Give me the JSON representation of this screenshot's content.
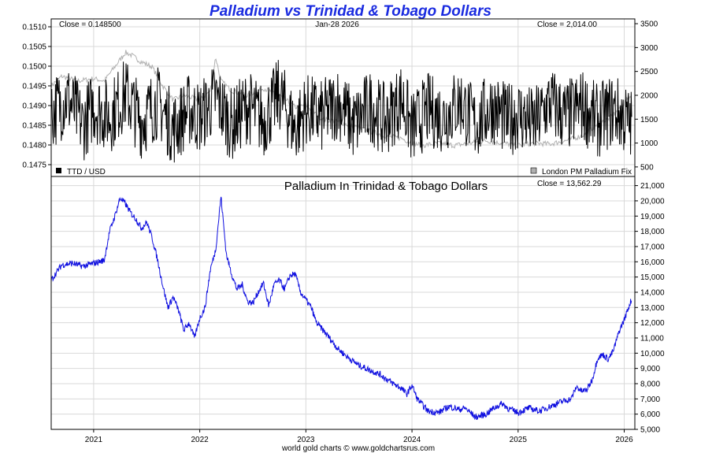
{
  "title": "Palladium vs Trinidad & Tobago Dollars",
  "footer": "world gold charts © www.goldchartsrus.com",
  "colors": {
    "title": "#1a2be0",
    "ttd_line": "#000000",
    "palladium_line": "#b0b0b0",
    "blue_line": "#1010e0",
    "grid": "#d9d9d9"
  },
  "x_axis": {
    "start": 2020.6,
    "end": 2026.1,
    "ticks": [
      {
        "value": 2021,
        "label": "2021"
      },
      {
        "value": 2022,
        "label": "2022"
      },
      {
        "value": 2023,
        "label": "2023"
      },
      {
        "value": 2024,
        "label": "2024"
      },
      {
        "value": 2025,
        "label": "2025"
      },
      {
        "value": 2026,
        "label": "2026"
      }
    ]
  },
  "top_panel": {
    "close_left": "Close = 0.148500",
    "date": "Jan-28  2026",
    "close_right": "Close = 2,014.00",
    "legend_left": "TTD / USD",
    "legend_right": "London PM Palladium Fix",
    "left_axis": {
      "range": [
        0.1472,
        0.1512
      ],
      "ticks": [
        {
          "value": 0.1475,
          "label": "0.1475"
        },
        {
          "value": 0.148,
          "label": "0.1480"
        },
        {
          "value": 0.1485,
          "label": "0.1485"
        },
        {
          "value": 0.149,
          "label": "0.1490"
        },
        {
          "value": 0.1495,
          "label": "0.1495"
        },
        {
          "value": 0.15,
          "label": "0.1500"
        },
        {
          "value": 0.1505,
          "label": "0.1505"
        },
        {
          "value": 0.151,
          "label": "0.1510"
        }
      ]
    },
    "right_axis": {
      "range": [
        300,
        3600
      ],
      "ticks": [
        {
          "value": 500,
          "label": "500"
        },
        {
          "value": 1000,
          "label": "1000"
        },
        {
          "value": 1500,
          "label": "1500"
        },
        {
          "value": 2000,
          "label": "2000"
        },
        {
          "value": 2500,
          "label": "2500"
        },
        {
          "value": 3000,
          "label": "3000"
        },
        {
          "value": 3500,
          "label": "3500"
        }
      ]
    }
  },
  "bottom_panel": {
    "title": "Palladium In Trinidad & Tobago Dollars",
    "close": "Close = 13,562.29",
    "right_axis": {
      "range": [
        5000,
        21600
      ],
      "ticks": [
        {
          "value": 5000,
          "label": "5,000"
        },
        {
          "value": 6000,
          "label": "6,000"
        },
        {
          "value": 7000,
          "label": "7,000"
        },
        {
          "value": 8000,
          "label": "8,000"
        },
        {
          "value": 9000,
          "label": "9,000"
        },
        {
          "value": 10000,
          "label": "10,000"
        },
        {
          "value": 11000,
          "label": "11,000"
        },
        {
          "value": 12000,
          "label": "12,000"
        },
        {
          "value": 13000,
          "label": "13,000"
        },
        {
          "value": 14000,
          "label": "14,000"
        },
        {
          "value": 15000,
          "label": "15,000"
        },
        {
          "value": 16000,
          "label": "16,000"
        },
        {
          "value": 17000,
          "label": "17,000"
        },
        {
          "value": 18000,
          "label": "18,000"
        },
        {
          "value": 19000,
          "label": "19,000"
        },
        {
          "value": 20000,
          "label": "20,000"
        },
        {
          "value": 21000,
          "label": "21,000"
        }
      ]
    }
  },
  "chart_data": [
    {
      "type": "line",
      "title": "Palladium vs Trinidad & Tobago Dollars",
      "series": [
        {
          "name": "TTD / USD",
          "axis": "left",
          "x": [
            2020.6,
            2020.75,
            2020.9,
            2021.0,
            2021.15,
            2021.3,
            2021.45,
            2021.6,
            2021.75,
            2021.9,
            2022.0,
            2022.15,
            2022.3,
            2022.45,
            2022.6,
            2022.75,
            2022.9,
            2023.0,
            2023.15,
            2023.3,
            2023.45,
            2023.6,
            2023.75,
            2023.9,
            2024.0,
            2024.15,
            2024.3,
            2024.45,
            2024.6,
            2024.75,
            2024.9,
            2025.0,
            2025.15,
            2025.3,
            2025.45,
            2025.6,
            2025.75,
            2025.9,
            2026.07
          ],
          "values": [
            0.1488,
            0.1492,
            0.1485,
            0.149,
            0.1487,
            0.1493,
            0.1486,
            0.1491,
            0.1484,
            0.1489,
            0.1487,
            0.1492,
            0.1485,
            0.149,
            0.1486,
            0.1493,
            0.1484,
            0.1489,
            0.1487,
            0.1491,
            0.1485,
            0.149,
            0.1486,
            0.1492,
            0.1484,
            0.1489,
            0.1487,
            0.1491,
            0.1485,
            0.149,
            0.1486,
            0.1488,
            0.1485,
            0.1491,
            0.1487,
            0.149,
            0.1486,
            0.1489,
            0.1485
          ]
        },
        {
          "name": "London PM Palladium Fix",
          "axis": "right",
          "x": [
            2020.6,
            2020.7,
            2020.85,
            2021.0,
            2021.1,
            2021.2,
            2021.3,
            2021.35,
            2021.45,
            2021.55,
            2021.65,
            2021.75,
            2021.85,
            2022.0,
            2022.1,
            2022.15,
            2022.2,
            2022.3,
            2022.45,
            2022.6,
            2022.75,
            2022.9,
            2023.0,
            2023.15,
            2023.3,
            2023.45,
            2023.6,
            2023.75,
            2023.9,
            2024.0,
            2024.1,
            2024.25,
            2024.4,
            2024.55,
            2024.7,
            2024.85,
            2025.0,
            2025.15,
            2025.3,
            2025.45,
            2025.6,
            2025.75,
            2025.85,
            2025.95,
            2026.07
          ],
          "values": [
            2200,
            2400,
            2300,
            2350,
            2300,
            2600,
            2900,
            2850,
            2700,
            2600,
            2200,
            1900,
            2000,
            1900,
            2100,
            2800,
            2300,
            2100,
            2000,
            2150,
            2000,
            1750,
            1800,
            1500,
            1450,
            1350,
            1250,
            1150,
            1100,
            1000,
            950,
            1000,
            950,
            1000,
            1050,
            1000,
            950,
            1000,
            980,
            1050,
            1150,
            1400,
            1500,
            1700,
            2014
          ]
        }
      ]
    },
    {
      "type": "line",
      "title": "Palladium In Trinidad & Tobago Dollars",
      "ylim": [
        5000,
        21600
      ],
      "series": [
        {
          "name": "Palladium In Trinidad & Tobago Dollars",
          "x": [
            2020.6,
            2020.65,
            2020.7,
            2020.8,
            2020.9,
            2021.0,
            2021.1,
            2021.15,
            2021.2,
            2021.25,
            2021.3,
            2021.35,
            2021.4,
            2021.45,
            2021.5,
            2021.55,
            2021.6,
            2021.65,
            2021.7,
            2021.75,
            2021.8,
            2021.85,
            2021.9,
            2021.95,
            2022.0,
            2022.05,
            2022.1,
            2022.15,
            2022.2,
            2022.25,
            2022.3,
            2022.35,
            2022.4,
            2022.45,
            2022.5,
            2022.55,
            2022.6,
            2022.65,
            2022.7,
            2022.75,
            2022.8,
            2022.85,
            2022.9,
            2022.95,
            2023.0,
            2023.05,
            2023.1,
            2023.2,
            2023.3,
            2023.4,
            2023.5,
            2023.6,
            2023.7,
            2023.8,
            2023.9,
            2023.95,
            2024.0,
            2024.05,
            2024.1,
            2024.15,
            2024.25,
            2024.35,
            2024.45,
            2024.5,
            2024.55,
            2024.6,
            2024.7,
            2024.75,
            2024.8,
            2024.85,
            2024.9,
            2025.0,
            2025.1,
            2025.2,
            2025.3,
            2025.4,
            2025.5,
            2025.55,
            2025.6,
            2025.65,
            2025.7,
            2025.75,
            2025.8,
            2025.85,
            2025.9,
            2025.95,
            2026.0,
            2026.03,
            2026.07
          ],
          "values": [
            14800,
            15300,
            15800,
            15900,
            15700,
            15900,
            16100,
            18000,
            19000,
            20200,
            19800,
            19200,
            18800,
            18200,
            18600,
            17600,
            16200,
            14500,
            13000,
            13700,
            12800,
            11500,
            12000,
            11000,
            12300,
            13000,
            15500,
            16800,
            20300,
            16500,
            15200,
            14200,
            14500,
            13400,
            13300,
            14000,
            14600,
            13100,
            14500,
            14800,
            14200,
            15100,
            15200,
            14000,
            13500,
            13000,
            12000,
            11200,
            10300,
            9700,
            9200,
            8900,
            8600,
            8100,
            7700,
            7300,
            7900,
            7000,
            6600,
            6200,
            6100,
            6500,
            6300,
            6400,
            6100,
            5800,
            6000,
            6300,
            6500,
            6700,
            6400,
            6100,
            6400,
            6200,
            6500,
            6800,
            7000,
            7800,
            7500,
            7600,
            8300,
            9700,
            9900,
            9600,
            10200,
            11400,
            12200,
            12800,
            13562
          ]
        }
      ]
    }
  ]
}
